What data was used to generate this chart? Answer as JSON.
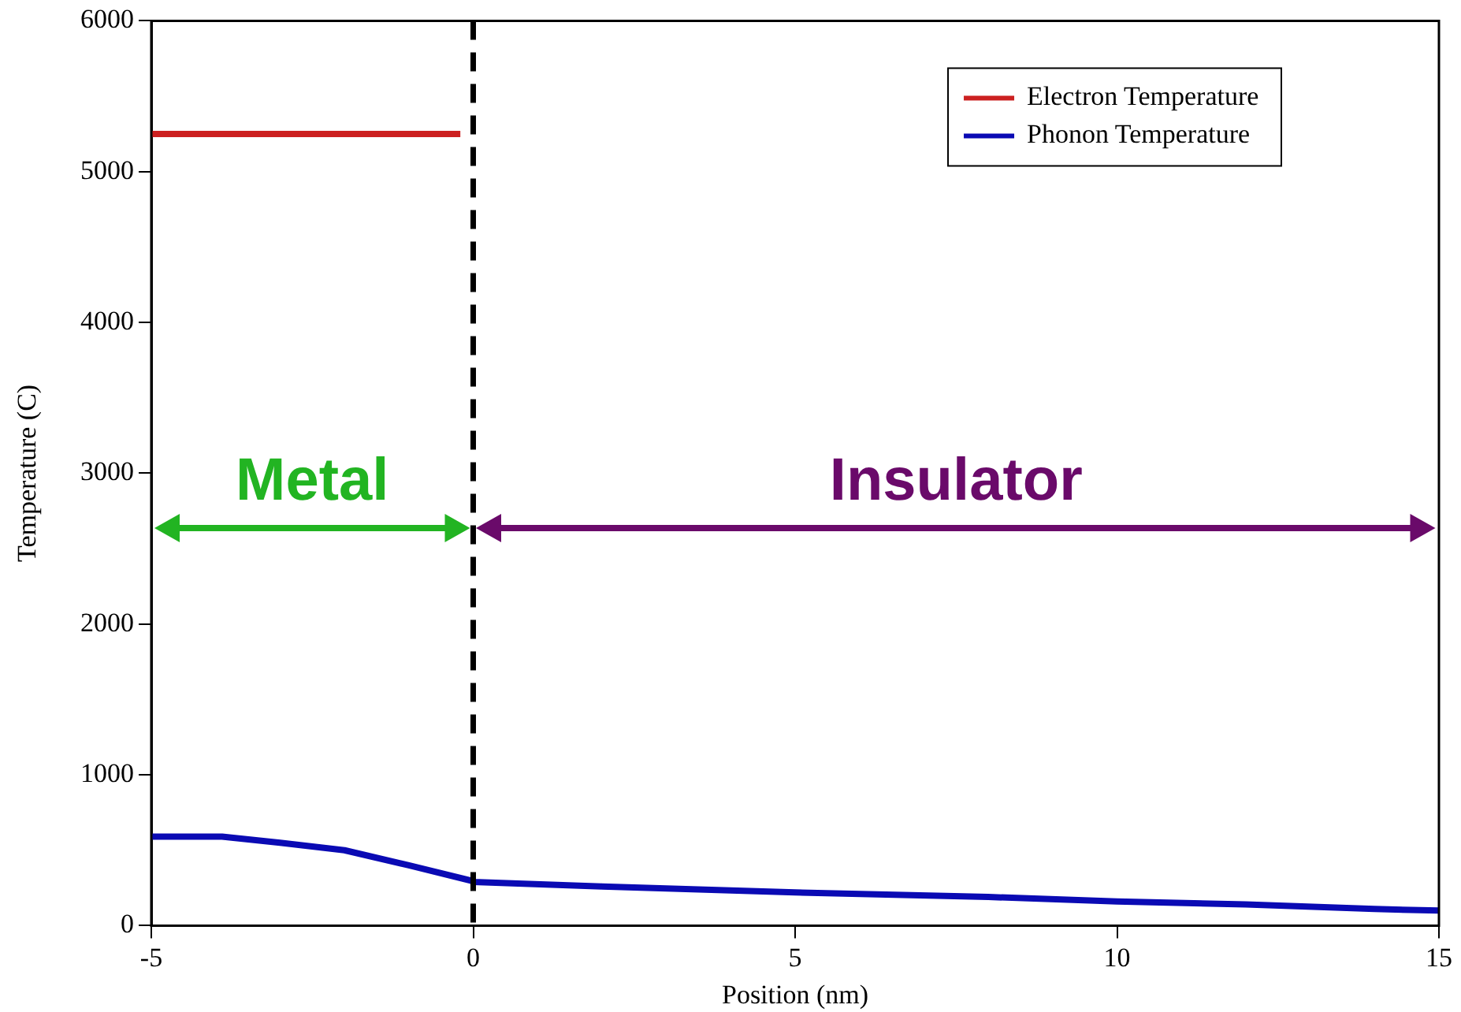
{
  "chart_data": {
    "type": "line",
    "xlabel": "Position (nm)",
    "ylabel": "Temperature (C)",
    "xlim": [
      -5,
      15
    ],
    "xticks": [
      -5,
      0,
      5,
      10,
      15
    ],
    "ylim": [
      0,
      6000
    ],
    "yticks": [
      0,
      1000,
      2000,
      3000,
      4000,
      5000,
      6000
    ],
    "series": [
      {
        "name": "Electron Temperature",
        "color": "#cc2020",
        "x": [
          -5,
          -0.2
        ],
        "values": [
          5250,
          5250
        ]
      },
      {
        "name": "Phonon Temperature",
        "color": "#0a0ab4",
        "x": [
          -5,
          -3.9,
          -3,
          -2,
          -1,
          -0.05,
          0,
          2,
          5,
          8,
          10,
          12,
          14,
          15
        ],
        "values": [
          590,
          590,
          550,
          500,
          400,
          300,
          290,
          260,
          220,
          190,
          160,
          140,
          110,
          100
        ]
      }
    ],
    "ref_lines": [
      {
        "axis": "x",
        "value": 0,
        "color": "#000000",
        "line_style": "dashed"
      }
    ],
    "annotations": [
      "Metal",
      "Insulator"
    ],
    "legend": "top right",
    "grid": false,
    "marker": "none",
    "line_style": "solid"
  }
}
